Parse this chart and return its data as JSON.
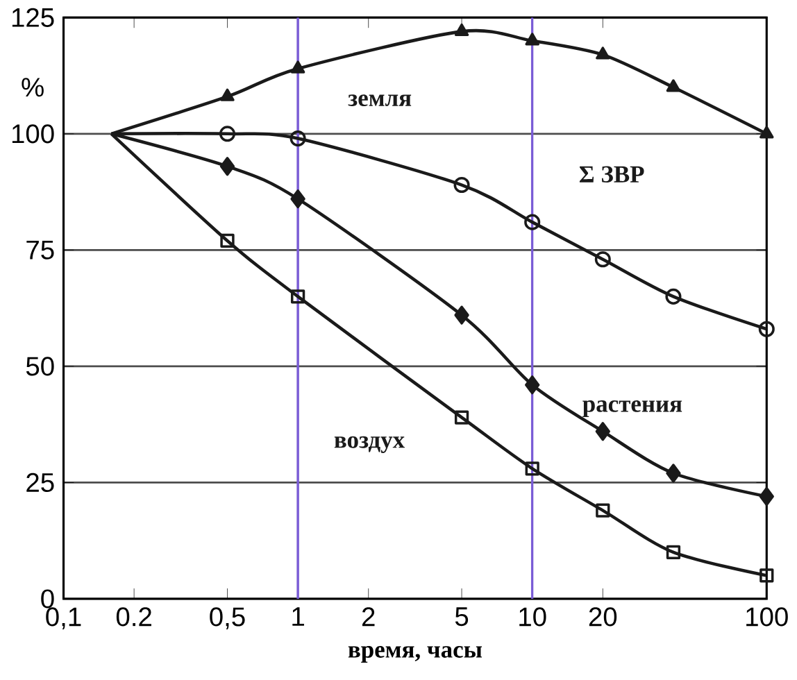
{
  "chart_data": {
    "type": "line",
    "ylabel": "%",
    "xlabel": "время, часы",
    "log": "x",
    "xlim": [
      0.1,
      100
    ],
    "ylim": [
      0,
      125
    ],
    "xticks": [
      {
        "value": 0.1,
        "label": "0,1"
      },
      {
        "value": 0.2,
        "label": "0.2"
      },
      {
        "value": 0.5,
        "label": "0,5"
      },
      1,
      2,
      5,
      10,
      20,
      100
    ],
    "yticks": [
      0,
      25,
      50,
      75,
      100,
      125
    ],
    "grid": "y",
    "line_style": "solid",
    "ref_lines": [
      {
        "axis": "x",
        "value": 1,
        "color": "#7a5cd6"
      },
      {
        "axis": "x",
        "value": 10,
        "color": "#7a5cd6"
      }
    ],
    "series": [
      {
        "name": "земля",
        "color": "#1a1a1a",
        "marker": "triangle",
        "x": [
          0.16,
          0.5,
          1,
          5,
          10,
          20,
          40,
          100
        ],
        "values": [
          100,
          108,
          114,
          122,
          120,
          117,
          110,
          100
        ]
      },
      {
        "name": "Σ ЗВР",
        "color": "#1a1a1a",
        "marker": "circle",
        "x": [
          0.16,
          0.5,
          1,
          5,
          10,
          20,
          40,
          100
        ],
        "values": [
          100,
          100,
          99,
          89,
          81,
          73,
          65,
          58
        ]
      },
      {
        "name": "растения",
        "color": "#1a1a1a",
        "marker": "diamond",
        "x": [
          0.16,
          0.5,
          1,
          5,
          10,
          20,
          40,
          100
        ],
        "values": [
          100,
          93,
          86,
          61,
          46,
          36,
          27,
          22
        ]
      },
      {
        "name": "воздух",
        "color": "#1a1a1a",
        "marker": "square",
        "x": [
          0.16,
          0.5,
          1,
          5,
          10,
          20,
          40,
          100
        ],
        "values": [
          100,
          77,
          65,
          39,
          28,
          19,
          10,
          5
        ]
      }
    ]
  }
}
